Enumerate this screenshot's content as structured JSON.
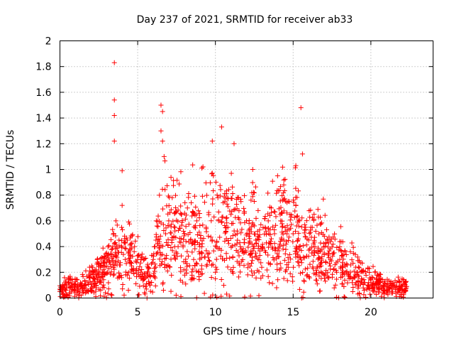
{
  "chart_data": {
    "type": "scatter",
    "title": "Day 237 of 2021, SRMTID for receiver ab33",
    "xlabel": "GPS time / hours",
    "ylabel": "SRMTID / TECUs",
    "xlim": [
      0,
      24
    ],
    "ylim": [
      0,
      2
    ],
    "xticks": [
      0,
      5,
      10,
      15,
      20
    ],
    "yticks": [
      0,
      0.2,
      0.4,
      0.6,
      0.8,
      1,
      1.2,
      1.4,
      1.6,
      1.8,
      2
    ],
    "xtick_labels": [
      "0",
      "5",
      "10",
      "15",
      "20"
    ],
    "ytick_labels": [
      "0",
      "0.2",
      "0.4",
      "0.6",
      "0.8",
      "1",
      "1.2",
      "1.4",
      "1.6",
      "1.8",
      "2"
    ],
    "grid": true,
    "marker": "plus",
    "color": "#ff0000",
    "series": [
      {
        "name": "SRMTID",
        "x": [
          0.0,
          0.2,
          0.4,
          0.6,
          0.8,
          1.0,
          1.2,
          1.4,
          1.6,
          1.8,
          2.0,
          2.2,
          2.4,
          2.6,
          2.8,
          3.0,
          3.2,
          3.4,
          3.5,
          3.5,
          3.5,
          3.5,
          3.6,
          3.8,
          4.0,
          4.0,
          4.2,
          4.4,
          4.6,
          4.8,
          5.0,
          5.2,
          5.4,
          5.6,
          5.8,
          6.0,
          6.2,
          6.4,
          6.5,
          6.5,
          6.6,
          6.6,
          6.7,
          6.8,
          7.0,
          7.2,
          7.4,
          7.6,
          7.8,
          8.0,
          8.2,
          8.4,
          8.6,
          8.8,
          9.0,
          9.2,
          9.4,
          9.6,
          9.8,
          9.8,
          10.0,
          10.2,
          10.4,
          10.6,
          10.8,
          11.0,
          11.2,
          11.4,
          11.6,
          11.8,
          12.0,
          12.2,
          12.4,
          12.6,
          12.8,
          13.0,
          13.2,
          13.4,
          13.6,
          13.8,
          14.0,
          14.2,
          14.4,
          14.6,
          14.8,
          15.0,
          15.2,
          15.4,
          15.5,
          15.6,
          15.8,
          16.0,
          16.2,
          16.4,
          16.6,
          16.8,
          17.0,
          17.2,
          17.4,
          17.6,
          17.8,
          18.0,
          18.2,
          18.4,
          18.6,
          18.8,
          19.0,
          19.2,
          19.4,
          19.6,
          19.8,
          20.0,
          20.2,
          20.4,
          20.6,
          20.8,
          21.0,
          21.2,
          21.4,
          21.6,
          21.8,
          22.0,
          22.2
        ],
        "y": [
          0.05,
          0.08,
          0.1,
          0.12,
          0.09,
          0.11,
          0.07,
          0.1,
          0.13,
          0.12,
          0.2,
          0.15,
          0.3,
          0.25,
          0.22,
          0.35,
          0.28,
          0.4,
          1.83,
          1.54,
          1.42,
          1.22,
          0.6,
          0.45,
          0.99,
          0.72,
          0.3,
          0.35,
          0.25,
          0.4,
          0.3,
          0.2,
          0.15,
          0.0,
          0.1,
          0.3,
          0.6,
          0.8,
          1.5,
          1.3,
          1.45,
          1.22,
          1.1,
          0.5,
          0.6,
          0.45,
          0.55,
          0.4,
          0.65,
          0.5,
          0.7,
          0.45,
          0.3,
          0.6,
          0.4,
          1.02,
          0.55,
          0.35,
          0.45,
          1.22,
          0.2,
          0.6,
          1.33,
          0.75,
          0.55,
          0.65,
          1.2,
          0.5,
          0.4,
          0.35,
          0.6,
          0.5,
          1.0,
          0.45,
          0.3,
          0.4,
          0.55,
          0.6,
          0.7,
          0.5,
          0.95,
          0.6,
          0.45,
          0.5,
          0.65,
          0.5,
          0.4,
          0.6,
          1.48,
          1.12,
          0.55,
          0.45,
          0.35,
          0.4,
          0.3,
          0.25,
          0.35,
          0.45,
          0.3,
          0.22,
          0.2,
          0.3,
          0.25,
          0.2,
          0.15,
          0.12,
          0.18,
          0.1,
          0.15,
          0.12,
          0.1,
          0.14,
          0.08,
          0.12,
          0.1,
          0.08,
          0.09,
          0.07,
          0.1,
          0.08,
          0.07,
          0.09,
          0.06
        ]
      }
    ],
    "density_envelope": {
      "hours": [
        0,
        0.5,
        1,
        1.5,
        2,
        2.5,
        3,
        3.5,
        4,
        4.5,
        5,
        5.5,
        6,
        6.5,
        7,
        7.5,
        8,
        8.5,
        9,
        9.5,
        10,
        10.5,
        11,
        11.5,
        12,
        12.5,
        13,
        13.5,
        14,
        14.5,
        15,
        15.5,
        16,
        16.5,
        17,
        17.5,
        18,
        18.5,
        19,
        19.5,
        20,
        20.5,
        21,
        21.5,
        22,
        22.3
      ],
      "typical_tecu": [
        0.06,
        0.09,
        0.1,
        0.1,
        0.13,
        0.18,
        0.25,
        0.28,
        0.32,
        0.3,
        0.25,
        0.15,
        0.25,
        0.45,
        0.5,
        0.48,
        0.45,
        0.47,
        0.45,
        0.5,
        0.5,
        0.52,
        0.5,
        0.45,
        0.42,
        0.45,
        0.45,
        0.48,
        0.5,
        0.5,
        0.5,
        0.45,
        0.4,
        0.38,
        0.35,
        0.3,
        0.28,
        0.25,
        0.18,
        0.14,
        0.12,
        0.1,
        0.09,
        0.08,
        0.08,
        0.07
      ]
    }
  }
}
